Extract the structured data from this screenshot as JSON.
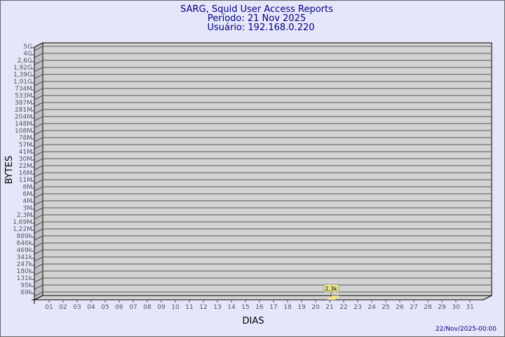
{
  "chart_data": {
    "type": "bar",
    "title": "SARG, Squid User Access Reports",
    "subtitle_period": "Período: 21 Nov 2025",
    "subtitle_user": "Usuário: 192.168.0.220",
    "xlabel": "DIAS",
    "ylabel": "BYTES",
    "y_scale": "log",
    "y_tick_labels": [
      "5G",
      "4G",
      "2,6G",
      "1,92G",
      "1,39G",
      "1,01G",
      "734M",
      "533M",
      "387M",
      "281M",
      "204M",
      "148M",
      "108M",
      "78M",
      "57M",
      "41M",
      "30M",
      "22M",
      "16M",
      "11M",
      "8M",
      "6M",
      "4M",
      "3M",
      "2,3M",
      "1,69M",
      "1,22M",
      "889k",
      "646k",
      "469k",
      "341k",
      "247k",
      "180k",
      "131k",
      "95k",
      "69k"
    ],
    "categories": [
      "01",
      "02",
      "03",
      "04",
      "05",
      "06",
      "07",
      "08",
      "09",
      "10",
      "11",
      "12",
      "13",
      "14",
      "15",
      "16",
      "17",
      "18",
      "19",
      "20",
      "21",
      "22",
      "23",
      "24",
      "25",
      "26",
      "27",
      "28",
      "29",
      "30",
      "31"
    ],
    "bars": [
      {
        "day": "21",
        "value": 2300,
        "label": "2,3k"
      }
    ],
    "grid": true,
    "colors": {
      "background": "#e6e6fa",
      "plot": "#d3d3d3",
      "bar": "#f5e08a",
      "text": "#000080"
    },
    "timestamp": "22/Nov/2025-00:00"
  }
}
